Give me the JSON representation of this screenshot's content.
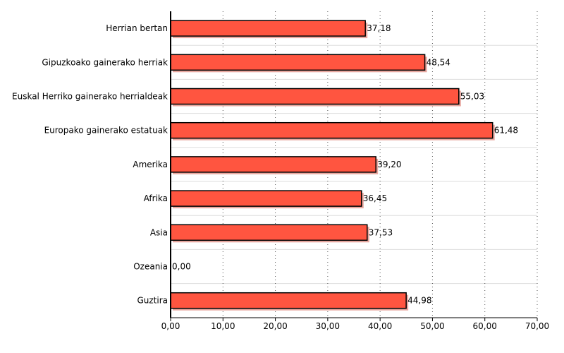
{
  "chart_data": {
    "type": "bar",
    "orientation": "horizontal",
    "title": "",
    "xlabel": "",
    "ylabel": "",
    "categories": [
      "Herrian bertan",
      "Gipuzkoako gainerako herriak",
      "Euskal Herriko gainerako herrialdeak",
      "Europako gainerako estatuak",
      "Amerika",
      "Afrika",
      "Asia",
      "Ozeania",
      "Guztira"
    ],
    "values": [
      37.18,
      48.54,
      55.03,
      61.48,
      39.2,
      36.45,
      37.53,
      0.0,
      44.98
    ],
    "value_labels": [
      "37,18",
      "48,54",
      "55,03",
      "61,48",
      "39,20",
      "36,45",
      "37,53",
      "0,00",
      "44,98"
    ],
    "xlim": [
      0,
      70
    ],
    "x_ticks": [
      0,
      10,
      20,
      30,
      40,
      50,
      60,
      70
    ],
    "x_tick_labels": [
      "0,00",
      "10,00",
      "20,00",
      "30,00",
      "40,00",
      "50,00",
      "60,00",
      "70,00"
    ],
    "grid": "vertical dotted",
    "legend": "none",
    "colors": {
      "bar": "#ff5540",
      "bar_stroke": "#000000",
      "shadow": "#e8a8a0",
      "grid": "#555555"
    }
  }
}
